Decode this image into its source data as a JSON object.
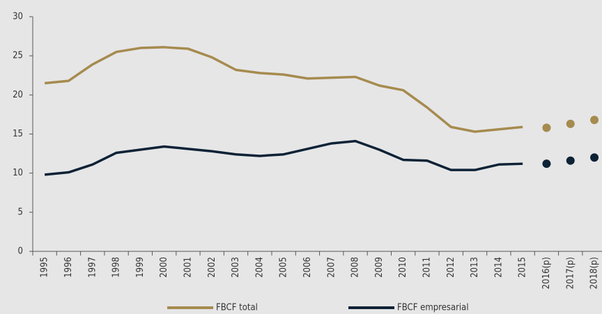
{
  "chart_data": {
    "type": "line",
    "categories": [
      "1995",
      "1996",
      "1997",
      "1998",
      "1999",
      "2000",
      "2001",
      "2002",
      "2003",
      "2004",
      "2005",
      "2006",
      "2007",
      "2008",
      "2009",
      "2010",
      "2011",
      "2012",
      "2013",
      "2014",
      "2015",
      "2016(p)",
      "2017(p)",
      "2018(p)"
    ],
    "series": [
      {
        "name": "FBCF total",
        "color": "#a68b4f",
        "values": [
          21.5,
          21.8,
          23.9,
          25.5,
          26.0,
          26.1,
          25.9,
          24.8,
          23.2,
          22.8,
          22.6,
          22.1,
          22.2,
          22.3,
          21.2,
          20.6,
          18.4,
          15.9,
          15.3,
          15.6,
          15.9,
          null,
          null,
          null
        ],
        "projected": [
          null,
          null,
          null,
          null,
          null,
          null,
          null,
          null,
          null,
          null,
          null,
          null,
          null,
          null,
          null,
          null,
          null,
          null,
          null,
          null,
          null,
          15.8,
          16.3,
          16.8
        ]
      },
      {
        "name": "FBCF empresarial",
        "color": "#0d2235",
        "values": [
          9.8,
          10.1,
          11.1,
          12.6,
          13.0,
          13.4,
          13.1,
          12.8,
          12.4,
          12.2,
          12.4,
          13.1,
          13.8,
          14.1,
          13.0,
          11.7,
          11.6,
          10.4,
          10.4,
          11.1,
          11.2,
          null,
          null,
          null
        ],
        "projected": [
          null,
          null,
          null,
          null,
          null,
          null,
          null,
          null,
          null,
          null,
          null,
          null,
          null,
          null,
          null,
          null,
          null,
          null,
          null,
          null,
          null,
          11.2,
          11.6,
          12.0
        ]
      }
    ],
    "ylim": [
      0,
      30
    ],
    "yticks": [
      0,
      5,
      10,
      15,
      20,
      25,
      30
    ],
    "legend": "bottom"
  }
}
